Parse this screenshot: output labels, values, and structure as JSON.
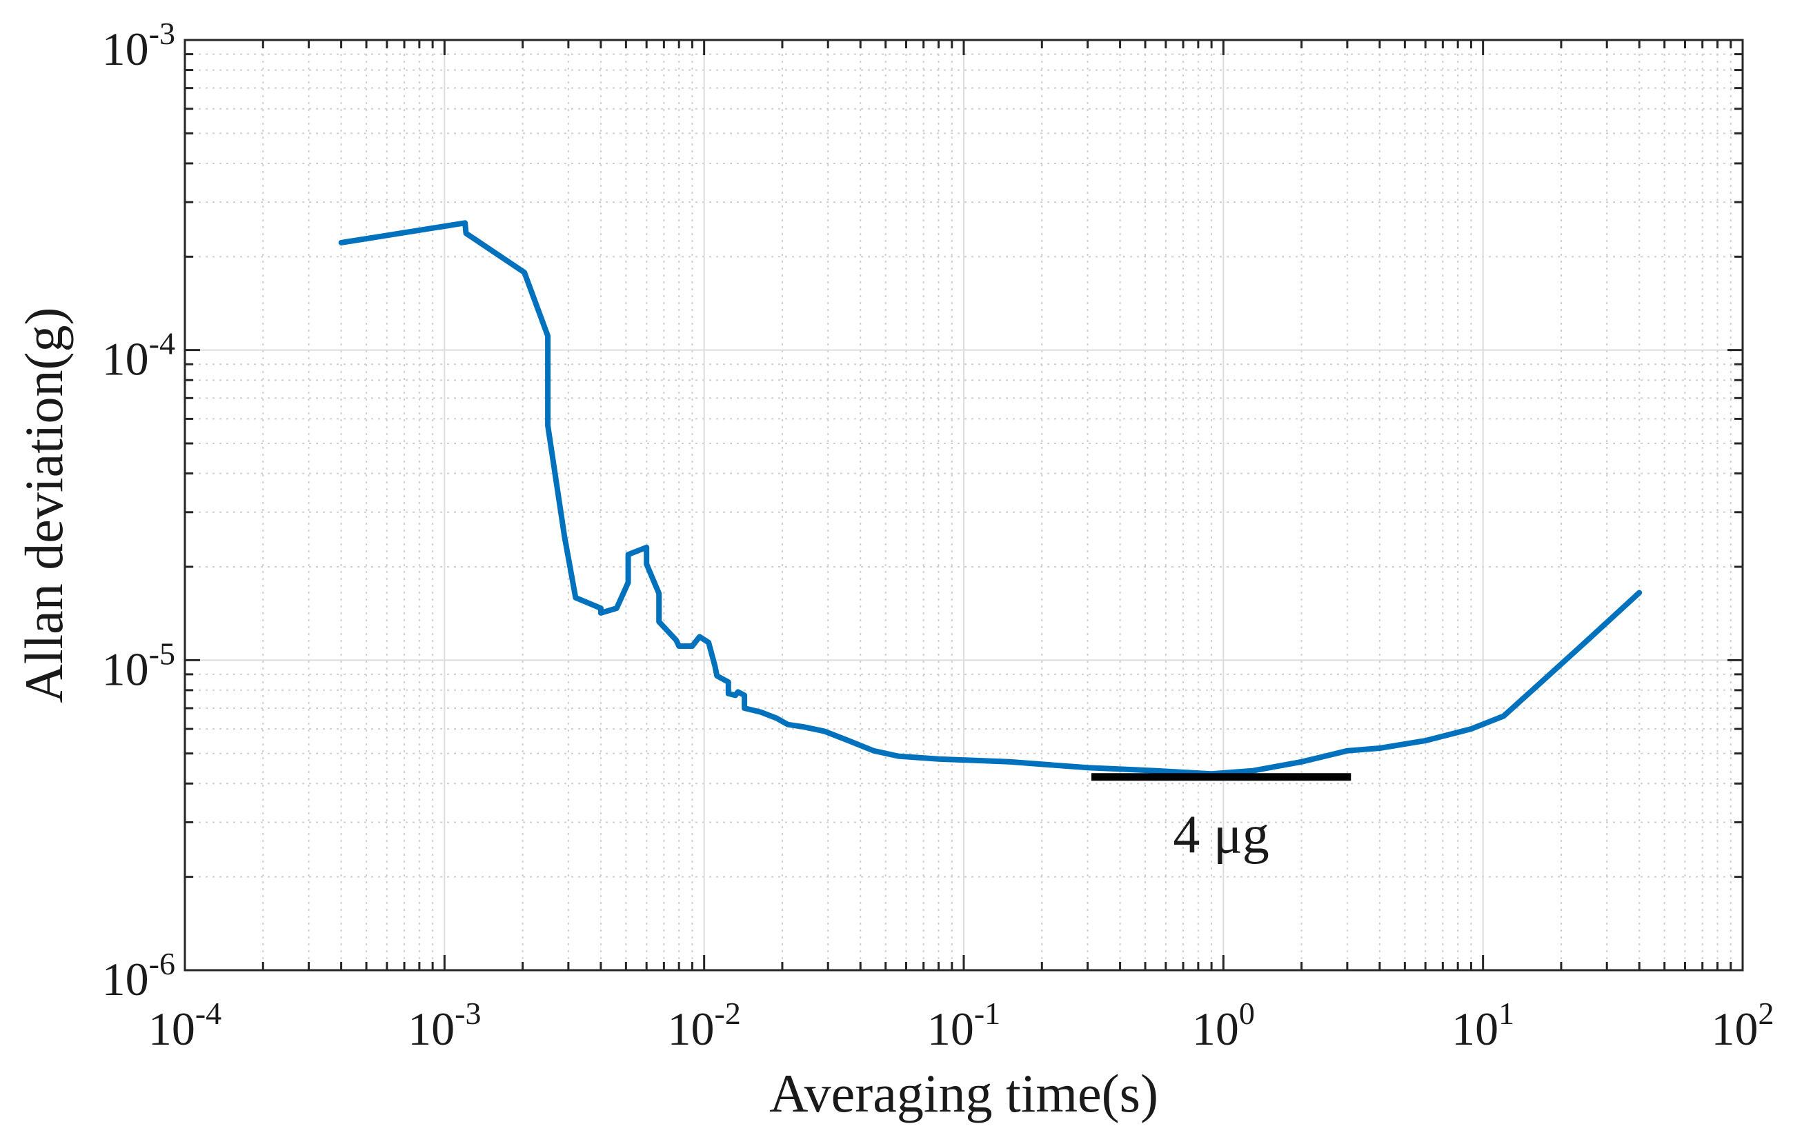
{
  "chart_data": {
    "type": "line",
    "title": "",
    "xlabel": "Averaging time(s)",
    "ylabel": "Allan deviation(g)",
    "xscale": "log",
    "yscale": "log",
    "xlim": [
      0.0001,
      100
    ],
    "ylim": [
      1e-06,
      0.001
    ],
    "grid": true,
    "x_ticks": [
      {
        "value": 0.0001,
        "base": "10",
        "exp": "-4"
      },
      {
        "value": 0.001,
        "base": "10",
        "exp": "-3"
      },
      {
        "value": 0.01,
        "base": "10",
        "exp": "-2"
      },
      {
        "value": 0.1,
        "base": "10",
        "exp": "-1"
      },
      {
        "value": 1,
        "base": "10",
        "exp": "0"
      },
      {
        "value": 10,
        "base": "10",
        "exp": "1"
      },
      {
        "value": 100,
        "base": "10",
        "exp": "2"
      }
    ],
    "y_ticks": [
      {
        "value": 1e-06,
        "base": "10",
        "exp": "-6"
      },
      {
        "value": 1e-05,
        "base": "10",
        "exp": "-5"
      },
      {
        "value": 0.0001,
        "base": "10",
        "exp": "-4"
      },
      {
        "value": 0.001,
        "base": "10",
        "exp": "-3"
      }
    ],
    "series": [
      {
        "name": "Allan deviation",
        "color": "#0072BD",
        "points": [
          [
            0.0004,
            0.000222
          ],
          [
            0.0012,
            0.000257
          ],
          [
            0.00121,
            0.000238
          ],
          [
            0.00203,
            0.000178
          ],
          [
            0.0025,
            0.000111
          ],
          [
            0.0025,
            5.7e-05
          ],
          [
            0.0029,
            2.5e-05
          ],
          [
            0.0032,
            1.59e-05
          ],
          [
            0.004,
            1.47e-05
          ],
          [
            0.004,
            1.42e-05
          ],
          [
            0.0046,
            1.47e-05
          ],
          [
            0.0051,
            1.78e-05
          ],
          [
            0.0051,
            2.19e-05
          ],
          [
            0.006,
            2.31e-05
          ],
          [
            0.006,
            2.04e-05
          ],
          [
            0.0067,
            1.64e-05
          ],
          [
            0.0067,
            1.33e-05
          ],
          [
            0.0078,
            1.16e-05
          ],
          [
            0.008,
            1.11e-05
          ],
          [
            0.009,
            1.11e-05
          ],
          [
            0.0096,
            1.19e-05
          ],
          [
            0.0104,
            1.14e-05
          ],
          [
            0.011,
            9.6e-06
          ],
          [
            0.0112,
            8.9e-06
          ],
          [
            0.0124,
            8.5e-06
          ],
          [
            0.0124,
            7.8e-06
          ],
          [
            0.0132,
            7.7e-06
          ],
          [
            0.0135,
            7.9e-06
          ],
          [
            0.0143,
            7.7e-06
          ],
          [
            0.0143,
            7e-06
          ],
          [
            0.0165,
            6.8e-06
          ],
          [
            0.019,
            6.5e-06
          ],
          [
            0.021,
            6.2e-06
          ],
          [
            0.024,
            6.1e-06
          ],
          [
            0.029,
            5.9e-06
          ],
          [
            0.036,
            5.5e-06
          ],
          [
            0.045,
            5.1e-06
          ],
          [
            0.056,
            4.9e-06
          ],
          [
            0.08,
            4.8e-06
          ],
          [
            0.15,
            4.7e-06
          ],
          [
            0.3,
            4.5e-06
          ],
          [
            0.55,
            4.4e-06
          ],
          [
            0.9,
            4.3e-06
          ],
          [
            1.3,
            4.4e-06
          ],
          [
            2.0,
            4.7e-06
          ],
          [
            3.0,
            5.1e-06
          ],
          [
            4.0,
            5.2e-06
          ],
          [
            6.0,
            5.5e-06
          ],
          [
            9.0,
            6e-06
          ],
          [
            12.0,
            6.6e-06
          ],
          [
            16.0,
            8.2e-06
          ],
          [
            25.0,
            1.15e-05
          ],
          [
            40.0,
            1.65e-05
          ]
        ]
      }
    ],
    "annotations": [
      {
        "type": "hline",
        "label": "4 μg",
        "y": 4.2e-06,
        "x_range": [
          0.31,
          3.1
        ],
        "color": "#000000"
      }
    ]
  }
}
